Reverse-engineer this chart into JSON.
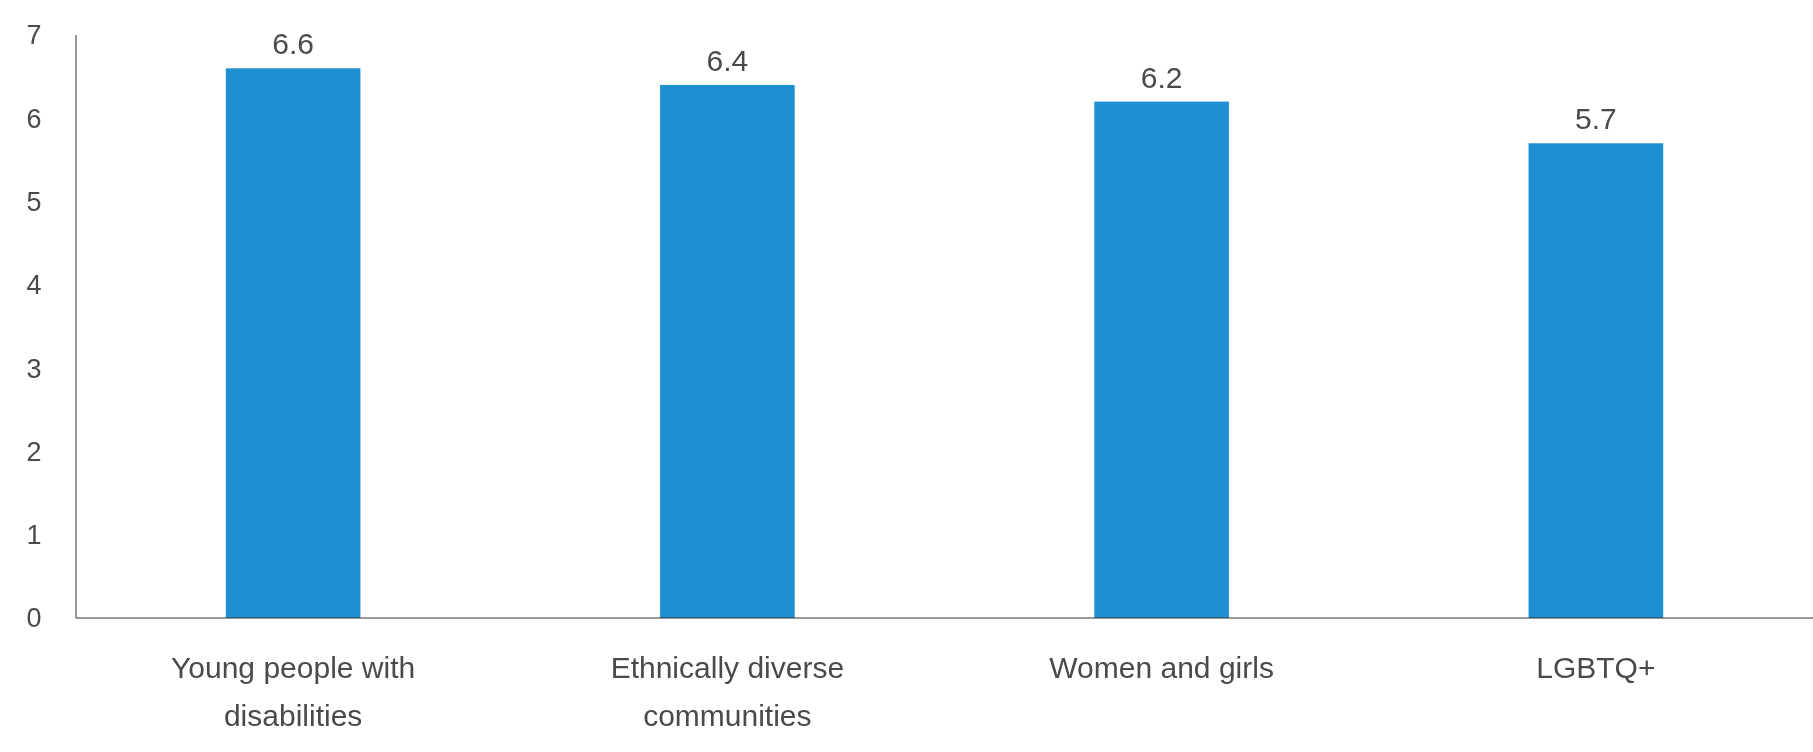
{
  "chart_data": {
    "type": "bar",
    "categories": [
      "Young people with disabilities",
      "Ethnically diverse communities",
      "Women and girls",
      "LGBTQ+"
    ],
    "values": [
      6.6,
      6.4,
      6.2,
      5.7
    ],
    "color": "#1e8fd2",
    "ylim": [
      0,
      7
    ],
    "yticks": [
      0,
      1,
      2,
      3,
      4,
      5,
      6,
      7
    ],
    "data_labels": true
  }
}
